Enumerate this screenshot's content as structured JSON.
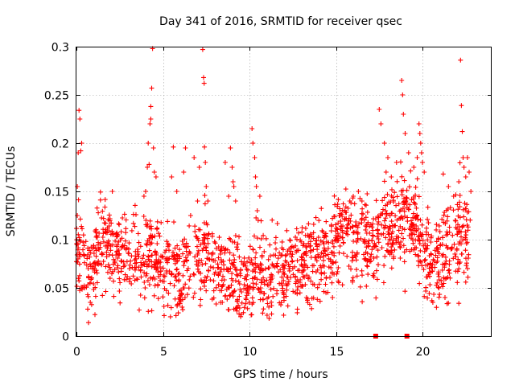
{
  "chart_data": {
    "type": "scatter",
    "title": "Day 341 of 2016, SRMTID for receiver qsec",
    "xlabel": "GPS time / hours",
    "ylabel": "SRMTID / TECUs",
    "xlim": [
      0,
      24
    ],
    "ylim": [
      0,
      0.3
    ],
    "xticks": [
      0,
      5,
      10,
      15,
      20
    ],
    "xtick_labels": [
      "0",
      "5",
      "10",
      "15",
      "20"
    ],
    "yticks": [
      0,
      0.05,
      0.1,
      0.15,
      0.2,
      0.25,
      0.3
    ],
    "ytick_labels": [
      "0",
      "0.05",
      "0.1",
      "0.15",
      "0.2",
      "0.25",
      "0.3"
    ],
    "grid": true,
    "colors": {
      "series": "#ff0000",
      "axis": "#000000",
      "grid": "#a0a0a0"
    },
    "series": [
      {
        "name": "SRMTID",
        "marker": "plus",
        "color": "#ff0000",
        "baseline": [
          [
            0.0,
            0.09
          ],
          [
            0.5,
            0.075
          ],
          [
            1.0,
            0.065
          ],
          [
            1.5,
            0.1
          ],
          [
            2.0,
            0.09
          ],
          [
            2.5,
            0.075
          ],
          [
            3.0,
            0.08
          ],
          [
            3.5,
            0.085
          ],
          [
            4.0,
            0.075
          ],
          [
            4.5,
            0.09
          ],
          [
            5.0,
            0.07
          ],
          [
            5.5,
            0.065
          ],
          [
            6.0,
            0.06
          ],
          [
            6.5,
            0.07
          ],
          [
            7.0,
            0.08
          ],
          [
            7.5,
            0.085
          ],
          [
            8.0,
            0.065
          ],
          [
            8.5,
            0.07
          ],
          [
            9.0,
            0.06
          ],
          [
            9.5,
            0.055
          ],
          [
            10.0,
            0.065
          ],
          [
            10.5,
            0.065
          ],
          [
            11.0,
            0.06
          ],
          [
            11.5,
            0.065
          ],
          [
            12.0,
            0.065
          ],
          [
            12.5,
            0.075
          ],
          [
            13.0,
            0.07
          ],
          [
            13.5,
            0.075
          ],
          [
            14.0,
            0.085
          ],
          [
            14.5,
            0.09
          ],
          [
            15.0,
            0.1
          ],
          [
            15.5,
            0.11
          ],
          [
            16.0,
            0.105
          ],
          [
            16.5,
            0.1
          ],
          [
            17.0,
            0.095
          ],
          [
            17.5,
            0.105
          ],
          [
            18.0,
            0.11
          ],
          [
            18.5,
            0.12
          ],
          [
            19.0,
            0.125
          ],
          [
            19.5,
            0.12
          ],
          [
            20.0,
            0.09
          ],
          [
            20.5,
            0.07
          ],
          [
            21.0,
            0.08
          ],
          [
            21.5,
            0.095
          ],
          [
            22.0,
            0.1
          ],
          [
            22.5,
            0.11
          ],
          [
            22.8,
            0.105
          ]
        ],
        "spread": 0.022,
        "x_range": [
          0,
          22.8
        ],
        "n_points": 1700,
        "outliers": [
          [
            0.05,
            0.155
          ],
          [
            0.1,
            0.19
          ],
          [
            0.15,
            0.234
          ],
          [
            0.2,
            0.225
          ],
          [
            0.25,
            0.192
          ],
          [
            0.05,
            0.125
          ],
          [
            0.3,
            0.2
          ],
          [
            4.1,
            0.175
          ],
          [
            4.15,
            0.2
          ],
          [
            4.2,
            0.178
          ],
          [
            4.25,
            0.22
          ],
          [
            4.3,
            0.225
          ],
          [
            4.3,
            0.238
          ],
          [
            4.35,
            0.257
          ],
          [
            4.4,
            0.298
          ],
          [
            4.45,
            0.195
          ],
          [
            4.0,
            0.15
          ],
          [
            4.5,
            0.17
          ],
          [
            3.9,
            0.145
          ],
          [
            4.6,
            0.165
          ],
          [
            5.5,
            0.165
          ],
          [
            5.6,
            0.196
          ],
          [
            5.8,
            0.15
          ],
          [
            6.2,
            0.17
          ],
          [
            6.3,
            0.195
          ],
          [
            6.6,
            0.125
          ],
          [
            6.8,
            0.185
          ],
          [
            7.0,
            0.14
          ],
          [
            7.3,
            0.297
          ],
          [
            7.35,
            0.268
          ],
          [
            7.38,
            0.262
          ],
          [
            7.4,
            0.196
          ],
          [
            7.45,
            0.18
          ],
          [
            7.1,
            0.175
          ],
          [
            7.5,
            0.155
          ],
          [
            7.6,
            0.14
          ],
          [
            8.6,
            0.18
          ],
          [
            8.8,
            0.145
          ],
          [
            8.9,
            0.195
          ],
          [
            9.0,
            0.175
          ],
          [
            9.05,
            0.16
          ],
          [
            9.1,
            0.155
          ],
          [
            9.2,
            0.14
          ],
          [
            10.15,
            0.215
          ],
          [
            10.2,
            0.2
          ],
          [
            10.3,
            0.185
          ],
          [
            10.35,
            0.165
          ],
          [
            10.4,
            0.155
          ],
          [
            10.45,
            0.13
          ],
          [
            10.5,
            0.12
          ],
          [
            10.6,
            0.145
          ],
          [
            15.5,
            0.13
          ],
          [
            15.8,
            0.14
          ],
          [
            16.0,
            0.145
          ],
          [
            16.3,
            0.15
          ],
          [
            16.5,
            0.14
          ],
          [
            17.5,
            0.235
          ],
          [
            17.6,
            0.22
          ],
          [
            17.8,
            0.2
          ],
          [
            18.0,
            0.185
          ],
          [
            17.9,
            0.17
          ],
          [
            18.2,
            0.165
          ],
          [
            18.5,
            0.18
          ],
          [
            18.8,
            0.265
          ],
          [
            18.85,
            0.25
          ],
          [
            18.9,
            0.23
          ],
          [
            19.0,
            0.21
          ],
          [
            19.2,
            0.19
          ],
          [
            19.5,
            0.175
          ],
          [
            19.8,
            0.22
          ],
          [
            19.85,
            0.21
          ],
          [
            19.9,
            0.2
          ],
          [
            19.95,
            0.19
          ],
          [
            20.0,
            0.18
          ],
          [
            20.1,
            0.17
          ],
          [
            19.7,
            0.185
          ],
          [
            21.2,
            0.168
          ],
          [
            21.5,
            0.155
          ],
          [
            21.8,
            0.145
          ],
          [
            22.1,
            0.16
          ],
          [
            22.2,
            0.286
          ],
          [
            22.25,
            0.239
          ],
          [
            22.3,
            0.212
          ],
          [
            22.35,
            0.185
          ],
          [
            22.4,
            0.175
          ],
          [
            22.5,
            0.165
          ],
          [
            22.6,
            0.185
          ],
          [
            22.7,
            0.17
          ],
          [
            22.8,
            0.15
          ]
        ],
        "low_points": [
          [
            0.7,
            0.014
          ],
          [
            0.65,
            0.028
          ],
          [
            0.8,
            0.035
          ],
          [
            9.1,
            0.028
          ],
          [
            9.4,
            0.023
          ],
          [
            10.1,
            0.022
          ],
          [
            12.0,
            0.037
          ],
          [
            13.3,
            0.04
          ],
          [
            14.8,
            0.04
          ],
          [
            20.6,
            0.035
          ],
          [
            22.1,
            0.034
          ],
          [
            21.3,
            0.04
          ]
        ]
      }
    ],
    "axis_markers": [
      {
        "x": 17.3,
        "y": 0
      },
      {
        "x": 19.1,
        "y": 0
      }
    ]
  }
}
